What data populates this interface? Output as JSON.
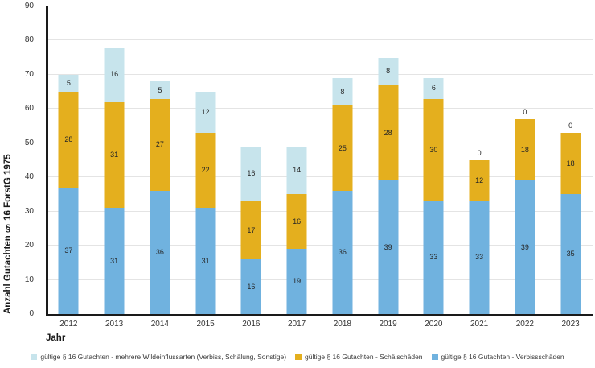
{
  "chart_data": {
    "type": "bar",
    "stacked": true,
    "title": "",
    "xlabel": "Jahr",
    "ylabel": "Anzahl Gutachten § 16 ForstG 1975",
    "ylim": [
      0,
      90
    ],
    "yticks": [
      0,
      10,
      20,
      30,
      40,
      50,
      60,
      70,
      80,
      90
    ],
    "grid": true,
    "legend_position": "bottom",
    "categories": [
      "2012",
      "2013",
      "2014",
      "2015",
      "2016",
      "2017",
      "2018",
      "2019",
      "2020",
      "2021",
      "2022",
      "2023"
    ],
    "series": [
      {
        "name": "gültige § 16 Gutachten - Verbissschäden",
        "color": "#70B2DF",
        "values": [
          37,
          31,
          36,
          31,
          16,
          19,
          36,
          39,
          33,
          33,
          39,
          35
        ]
      },
      {
        "name": "gültige § 16 Gutachten - Schälschäden",
        "color": "#E4AF1E",
        "values": [
          28,
          31,
          27,
          22,
          17,
          16,
          25,
          28,
          30,
          12,
          18,
          18
        ]
      },
      {
        "name": "gültige § 16 Gutachten - mehrere Wildeinflussarten (Verbiss, Schälung, Sonstige)",
        "color": "#C7E4EC",
        "values": [
          5,
          16,
          5,
          12,
          16,
          14,
          8,
          8,
          6,
          0,
          0,
          0
        ]
      }
    ],
    "totals": [
      70,
      78,
      68,
      65,
      49,
      49,
      69,
      75,
      69,
      45,
      57,
      53
    ],
    "legend": [
      {
        "label": "gültige § 16 Gutachten - mehrere Wildeinflussarten (Verbiss, Schälung, Sonstige)",
        "color": "#C7E4EC"
      },
      {
        "label": "gültige § 16 Gutachten - Schälschäden",
        "color": "#E4AF1E"
      },
      {
        "label": "gültige § 16 Gutachten - Verbissschäden",
        "color": "#70B2DF"
      }
    ]
  },
  "colors": {
    "axis": "#1a1a1a",
    "gridline": "#e4e4e4",
    "bar_label_text": "#262626",
    "background": "#ffffff"
  }
}
